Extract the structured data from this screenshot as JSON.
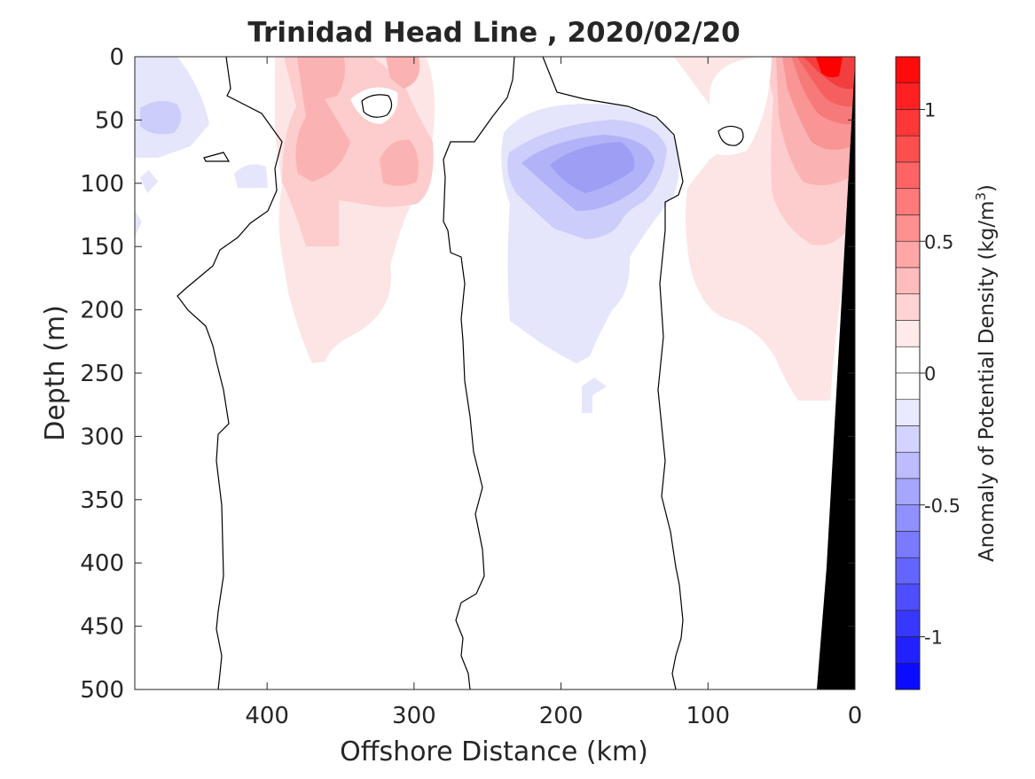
{
  "chart_data": {
    "type": "heatmap",
    "title": "Trinidad Head Line , 2020/02/20",
    "xlabel": "Offshore Distance (km)",
    "ylabel": "Depth (m)",
    "xlim": [
      490,
      0
    ],
    "ylim": [
      500,
      0
    ],
    "x_reversed": true,
    "y_reversed": true,
    "xticks": [
      "400",
      "300",
      "200",
      "100",
      "0"
    ],
    "xtick_values": [
      400,
      300,
      200,
      100,
      0
    ],
    "yticks": [
      "0",
      "50",
      "100",
      "150",
      "200",
      "250",
      "300",
      "350",
      "400",
      "450",
      "500"
    ],
    "ytick_values": [
      0,
      50,
      100,
      150,
      200,
      250,
      300,
      350,
      400,
      450,
      500
    ],
    "colorbar": {
      "label": "Anomaly of Potential Density (kg/m",
      "label_superscript": "3",
      "label_end": ")",
      "range": [
        -1.2,
        1.2
      ],
      "step": 0.1,
      "ticks": [
        "1",
        "0.5",
        "0",
        "-0.5",
        "-1"
      ],
      "tick_values": [
        1,
        0.5,
        0,
        -0.5,
        -1
      ],
      "negative_color": "#0000ff",
      "positive_color": "#ff0000"
    },
    "zero_contour_color": "#000000",
    "bathymetry_color": "#000000",
    "grid": false,
    "features": [
      {
        "sign": "negative",
        "x": 465,
        "y": 45,
        "value": -0.2
      },
      {
        "sign": "negative",
        "x": 470,
        "y": 95,
        "value": -0.1
      },
      {
        "sign": "negative",
        "x": 450,
        "y": 95,
        "value": -0.1
      },
      {
        "sign": "positive",
        "x": 370,
        "y": 80,
        "value": 0.3
      },
      {
        "sign": "positive",
        "x": 355,
        "y": 20,
        "value": 0.2
      },
      {
        "sign": "positive",
        "x": 315,
        "y": 85,
        "value": 0.3
      },
      {
        "sign": "positive",
        "x": 350,
        "y": 150,
        "value": 0.1
      },
      {
        "sign": "negative",
        "x": 185,
        "y": 80,
        "value": -0.4
      },
      {
        "sign": "negative",
        "x": 195,
        "y": 160,
        "value": -0.1
      },
      {
        "sign": "positive",
        "x": 20,
        "y": 10,
        "value": 1.2
      },
      {
        "sign": "positive",
        "x": 55,
        "y": 150,
        "value": 0.2
      }
    ]
  }
}
